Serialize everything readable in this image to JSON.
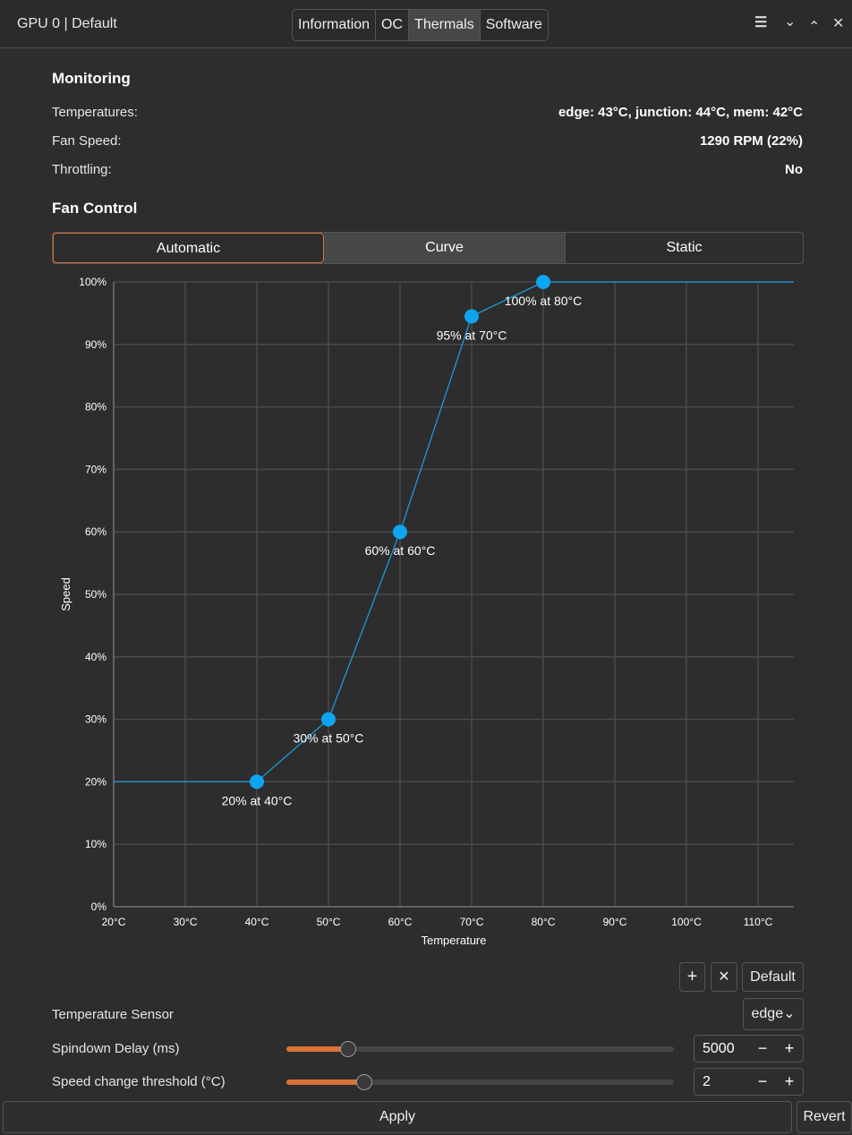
{
  "window": {
    "title": "GPU 0 | Default",
    "tabs": [
      "Information",
      "OC",
      "Thermals",
      "Software"
    ],
    "active_tab": "Thermals",
    "controls": {
      "menu": "☰",
      "minimize": "⌄",
      "maximize": "⌃",
      "close": "✕"
    }
  },
  "monitoring": {
    "heading": "Monitoring",
    "rows": [
      {
        "label": "Temperatures:",
        "value": "edge: 43°C, junction: 44°C, mem: 42°C"
      },
      {
        "label": "Fan Speed:",
        "value": "1290 RPM (22%)"
      },
      {
        "label": "Throttling:",
        "value": "No"
      }
    ]
  },
  "fan_control": {
    "heading": "Fan Control",
    "modes": [
      "Automatic",
      "Curve",
      "Static"
    ],
    "selected_mode": "Curve"
  },
  "chart_data": {
    "type": "line",
    "xlabel": "Temperature",
    "ylabel": "Speed",
    "xlim": [
      20,
      115
    ],
    "ylim": [
      0,
      100
    ],
    "x_ticks": [
      "20°C",
      "30°C",
      "40°C",
      "50°C",
      "60°C",
      "70°C",
      "80°C",
      "90°C",
      "100°C",
      "110°C"
    ],
    "y_ticks": [
      "0%",
      "10%",
      "20%",
      "30%",
      "40%",
      "50%",
      "60%",
      "70%",
      "80%",
      "90%",
      "100%"
    ],
    "points": [
      {
        "x": 40,
        "y": 20,
        "label": "20% at 40°C"
      },
      {
        "x": 50,
        "y": 30,
        "label": "30% at 50°C"
      },
      {
        "x": 60,
        "y": 60,
        "label": "60% at 60°C"
      },
      {
        "x": 70,
        "y": 94.5,
        "label": "95% at 70°C"
      },
      {
        "x": 80,
        "y": 100,
        "label": "100% at 80°C"
      }
    ],
    "line_color": "#1a9ad6",
    "point_color": "#0ea5f0",
    "grid": true
  },
  "curve_buttons": {
    "add": "+",
    "remove": "✕",
    "default": "Default"
  },
  "settings": {
    "sensor_label": "Temperature Sensor",
    "sensor_value": "edge",
    "spindown_label": "Spindown Delay (ms)",
    "spindown_value": "5000",
    "spindown_fraction": 0.16,
    "threshold_label": "Speed change threshold (°C)",
    "threshold_value": "2",
    "threshold_fraction": 0.2,
    "minus": "−",
    "plus": "+"
  },
  "footer": {
    "apply": "Apply",
    "revert": "Revert"
  },
  "colors": {
    "accent": "#d9733a"
  }
}
